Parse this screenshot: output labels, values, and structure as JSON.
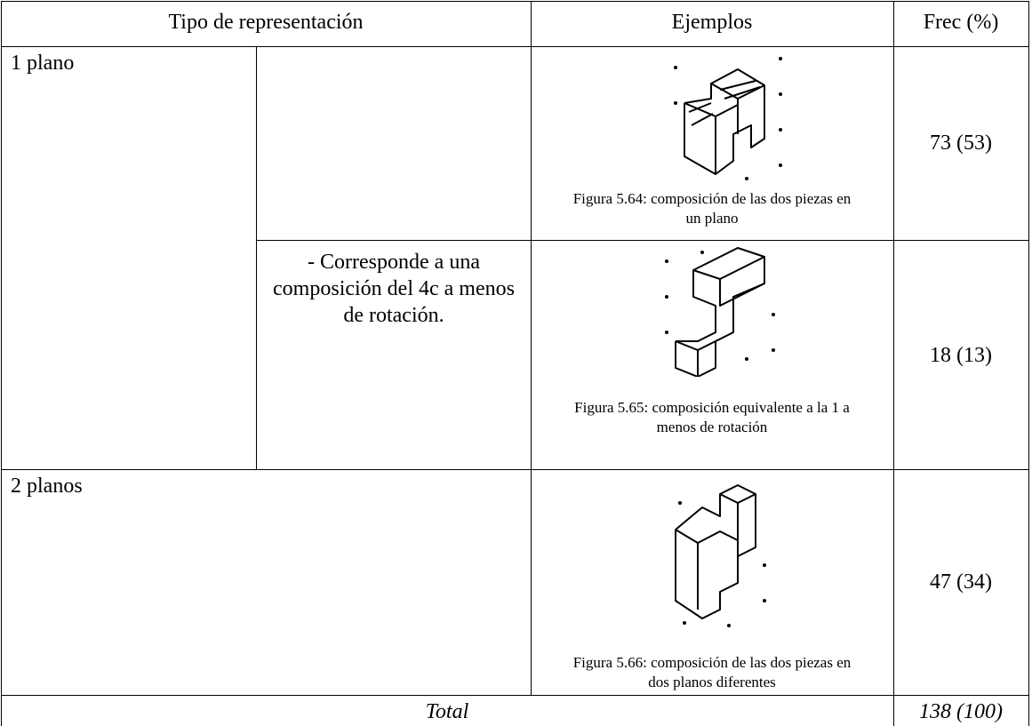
{
  "table": {
    "header": [
      "Tipo de representación",
      "Ejemplos",
      "Frec (%)"
    ],
    "rows": [
      {
        "type": "1 plano",
        "caption": "Figura 5.64: composición de las dos piezas en un plano",
        "freq": "73 (53)"
      },
      {
        "note": "- Corresponde a una composición del 4c a menos de rotación.",
        "caption": "Figura 5.65: composición equivalente a la 1 a menos de rotación",
        "freq": "18 (13)"
      },
      {
        "type": "2 planos",
        "caption": "Figura 5.66: composición de las dos piezas en dos planos diferentes",
        "freq": "47 (34)"
      }
    ],
    "total": {
      "label": "Total",
      "freq": "138 (100)"
    }
  }
}
